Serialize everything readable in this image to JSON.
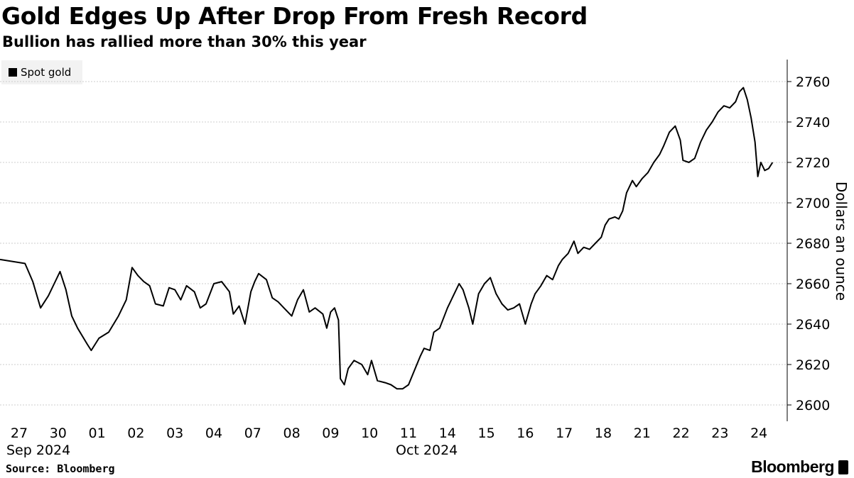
{
  "title": "Gold Edges Up After Drop From Fresh Record",
  "subtitle": "Bullion has rallied more than 30% this year",
  "source": "Source: Bloomberg",
  "brand": "Bloomberg",
  "legend": {
    "label": "Spot gold"
  },
  "colors": {
    "line": "#000000",
    "grid": "#cccccc",
    "legend_bg": "#f2f2f2"
  },
  "chart_data": {
    "type": "line",
    "ylabel": "Dollars an ounce",
    "ylim": [
      2592,
      2770
    ],
    "yticks": [
      2600,
      2620,
      2640,
      2660,
      2680,
      2700,
      2720,
      2740,
      2760
    ],
    "x_tick_labels": [
      "27",
      "30",
      "01",
      "02",
      "03",
      "04",
      "07",
      "08",
      "09",
      "10",
      "11",
      "14",
      "15",
      "16",
      "17",
      "18",
      "21",
      "22",
      "23",
      "24"
    ],
    "x_month_labels": [
      {
        "label": "Sep 2024",
        "tick": "27"
      },
      {
        "label": "Oct 2024",
        "tick": "11"
      }
    ],
    "grid": true,
    "legend_position": "top-left",
    "series": [
      {
        "name": "Spot gold",
        "points": [
          [
            0.0,
            2672
          ],
          [
            0.15,
            2670
          ],
          [
            0.35,
            2661
          ],
          [
            0.55,
            2648
          ],
          [
            0.75,
            2654
          ],
          [
            0.9,
            2660
          ],
          [
            1.05,
            2666
          ],
          [
            1.2,
            2657
          ],
          [
            1.35,
            2644
          ],
          [
            1.5,
            2638
          ],
          [
            1.75,
            2630
          ],
          [
            1.85,
            2627
          ],
          [
            2.05,
            2633
          ],
          [
            2.3,
            2636
          ],
          [
            2.55,
            2644
          ],
          [
            2.75,
            2652
          ],
          [
            2.9,
            2668
          ],
          [
            3.05,
            2664
          ],
          [
            3.2,
            2661
          ],
          [
            3.35,
            2659
          ],
          [
            3.5,
            2650
          ],
          [
            3.7,
            2649
          ],
          [
            3.85,
            2658
          ],
          [
            4.0,
            2657
          ],
          [
            4.15,
            2652
          ],
          [
            4.3,
            2659
          ],
          [
            4.5,
            2656
          ],
          [
            4.65,
            2648
          ],
          [
            4.8,
            2650
          ],
          [
            5.0,
            2660
          ],
          [
            5.2,
            2661
          ],
          [
            5.4,
            2656
          ],
          [
            5.5,
            2645
          ],
          [
            5.65,
            2649
          ],
          [
            5.8,
            2640
          ],
          [
            5.95,
            2656
          ],
          [
            6.05,
            2661
          ],
          [
            6.15,
            2665
          ],
          [
            6.35,
            2662
          ],
          [
            6.5,
            2653
          ],
          [
            6.65,
            2651
          ],
          [
            6.8,
            2648
          ],
          [
            7.0,
            2644
          ],
          [
            7.15,
            2652
          ],
          [
            7.3,
            2657
          ],
          [
            7.45,
            2646
          ],
          [
            7.6,
            2648
          ],
          [
            7.8,
            2645
          ],
          [
            7.9,
            2638
          ],
          [
            8.0,
            2646
          ],
          [
            8.1,
            2648
          ],
          [
            8.2,
            2642
          ],
          [
            8.25,
            2613
          ],
          [
            8.35,
            2610
          ],
          [
            8.45,
            2618
          ],
          [
            8.6,
            2622
          ],
          [
            8.8,
            2620
          ],
          [
            8.95,
            2615
          ],
          [
            9.05,
            2622
          ],
          [
            9.2,
            2612
          ],
          [
            9.4,
            2611
          ],
          [
            9.55,
            2610
          ],
          [
            9.7,
            2608
          ],
          [
            9.85,
            2608
          ],
          [
            10.0,
            2610
          ],
          [
            10.15,
            2617
          ],
          [
            10.3,
            2624
          ],
          [
            10.4,
            2628
          ],
          [
            10.55,
            2627
          ],
          [
            10.65,
            2636
          ],
          [
            10.8,
            2638
          ],
          [
            11.0,
            2648
          ],
          [
            11.15,
            2654
          ],
          [
            11.3,
            2660
          ],
          [
            11.4,
            2657
          ],
          [
            11.55,
            2648
          ],
          [
            11.65,
            2640
          ],
          [
            11.8,
            2655
          ],
          [
            11.95,
            2660
          ],
          [
            12.1,
            2663
          ],
          [
            12.25,
            2655
          ],
          [
            12.4,
            2650
          ],
          [
            12.55,
            2647
          ],
          [
            12.7,
            2648
          ],
          [
            12.85,
            2650
          ],
          [
            13.0,
            2640
          ],
          [
            13.15,
            2650
          ],
          [
            13.25,
            2655
          ],
          [
            13.4,
            2659
          ],
          [
            13.55,
            2664
          ],
          [
            13.7,
            2662
          ],
          [
            13.85,
            2669
          ],
          [
            13.95,
            2672
          ],
          [
            14.1,
            2675
          ],
          [
            14.25,
            2681
          ],
          [
            14.35,
            2675
          ],
          [
            14.5,
            2678
          ],
          [
            14.65,
            2677
          ],
          [
            14.8,
            2680
          ],
          [
            14.95,
            2683
          ],
          [
            15.05,
            2689
          ],
          [
            15.15,
            2692
          ],
          [
            15.3,
            2693
          ],
          [
            15.4,
            2692
          ],
          [
            15.5,
            2696
          ],
          [
            15.6,
            2705
          ],
          [
            15.75,
            2711
          ],
          [
            15.85,
            2708
          ],
          [
            16.0,
            2712
          ],
          [
            16.15,
            2715
          ],
          [
            16.3,
            2720
          ],
          [
            16.45,
            2724
          ],
          [
            16.55,
            2728
          ],
          [
            16.7,
            2735
          ],
          [
            16.85,
            2738
          ],
          [
            16.98,
            2731
          ],
          [
            17.05,
            2721
          ],
          [
            17.2,
            2720
          ],
          [
            17.35,
            2722
          ],
          [
            17.5,
            2730
          ],
          [
            17.65,
            2736
          ],
          [
            17.8,
            2740
          ],
          [
            17.95,
            2745
          ],
          [
            18.1,
            2748
          ],
          [
            18.25,
            2747
          ],
          [
            18.4,
            2750
          ],
          [
            18.5,
            2755
          ],
          [
            18.6,
            2757
          ],
          [
            18.7,
            2751
          ],
          [
            18.8,
            2742
          ],
          [
            18.9,
            2730
          ],
          [
            18.97,
            2713
          ],
          [
            19.05,
            2720
          ],
          [
            19.15,
            2716
          ],
          [
            19.25,
            2717
          ],
          [
            19.35,
            2720
          ]
        ]
      }
    ]
  }
}
